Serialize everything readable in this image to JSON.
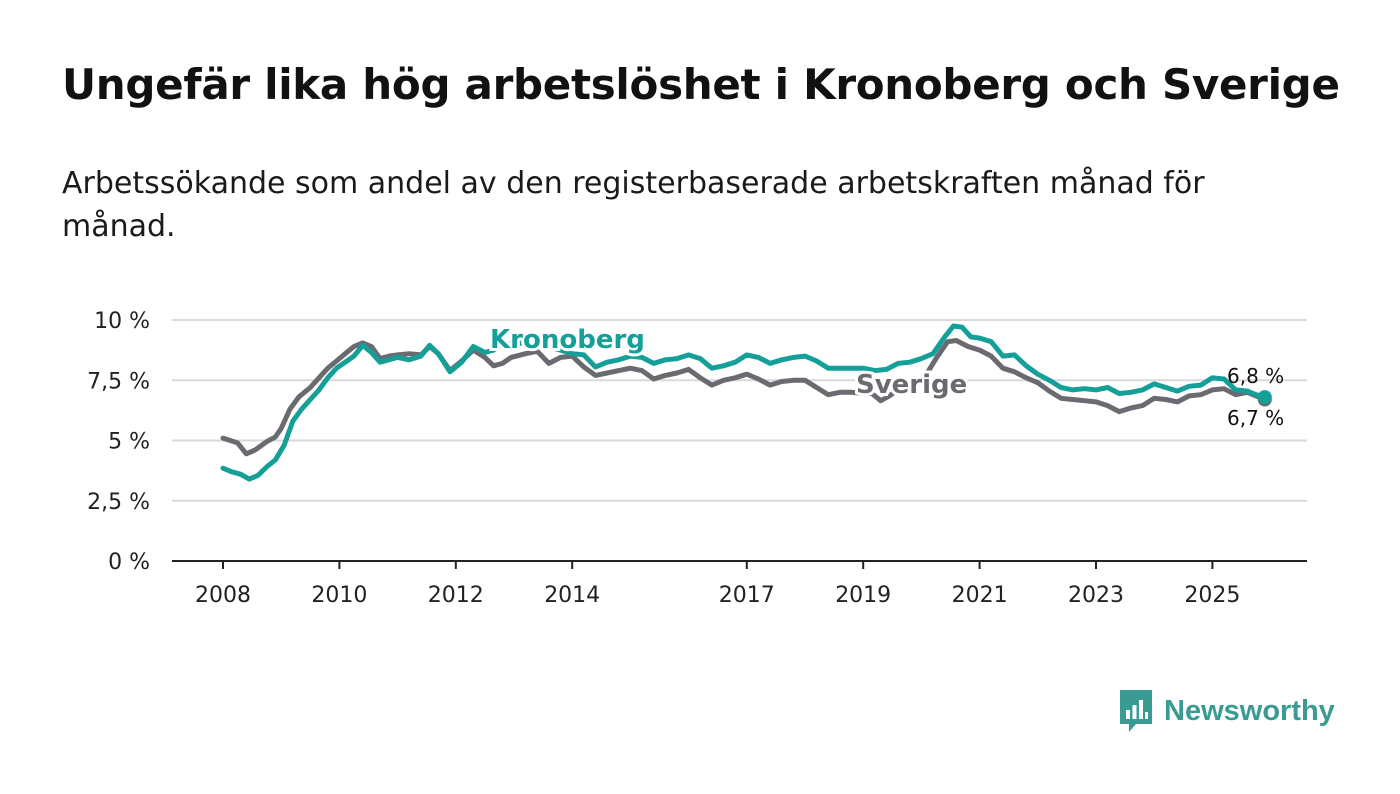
{
  "title": "Ungefär lika hög arbetslöshet i Kronoberg och Sverige",
  "subtitle": "Arbetssökande som andel av den registerbaserade arbetskraften månad för månad.",
  "brand": {
    "name": "Newsworthy",
    "logo_icon": "newsworthy-bar-chart-icon",
    "color": "#3a9b92"
  },
  "chart_data": {
    "type": "line",
    "title": "Ungefär lika hög arbetslöshet i Kronoberg och Sverige",
    "xlabel": "",
    "ylabel": "",
    "xlim": [
      2007.85,
      2026.5
    ],
    "ylim": [
      0,
      10
    ],
    "grid": true,
    "y_ticks": [
      {
        "value": 0,
        "label": "0 %"
      },
      {
        "value": 2.5,
        "label": "2,5 %"
      },
      {
        "value": 5,
        "label": "5 %"
      },
      {
        "value": 7.5,
        "label": "7,5 %"
      },
      {
        "value": 10,
        "label": "10 %"
      }
    ],
    "x_ticks": [
      {
        "value": 2008,
        "label": "2008"
      },
      {
        "value": 2010,
        "label": "2010"
      },
      {
        "value": 2012,
        "label": "2012"
      },
      {
        "value": 2014,
        "label": "2014"
      },
      {
        "value": 2017,
        "label": "2017"
      },
      {
        "value": 2019,
        "label": "2019"
      },
      {
        "value": 2021,
        "label": "2021"
      },
      {
        "value": 2023,
        "label": "2023"
      },
      {
        "value": 2025,
        "label": "2025"
      }
    ],
    "series": [
      {
        "name": "Sverige",
        "color": "#6b6a70",
        "label": "Sverige",
        "label_anchor": [
          2018.9,
          7.1
        ],
        "end_label": "6,7 %",
        "points": [
          [
            2008.0,
            5.1
          ],
          [
            2008.25,
            4.9
          ],
          [
            2008.4,
            4.45
          ],
          [
            2008.55,
            4.6
          ],
          [
            2008.75,
            4.95
          ],
          [
            2008.9,
            5.15
          ],
          [
            2009.0,
            5.5
          ],
          [
            2009.15,
            6.3
          ],
          [
            2009.3,
            6.8
          ],
          [
            2009.5,
            7.2
          ],
          [
            2009.65,
            7.6
          ],
          [
            2009.8,
            8.0
          ],
          [
            2009.95,
            8.3
          ],
          [
            2010.1,
            8.6
          ],
          [
            2010.25,
            8.9
          ],
          [
            2010.4,
            9.05
          ],
          [
            2010.55,
            8.9
          ],
          [
            2010.7,
            8.4
          ],
          [
            2010.85,
            8.5
          ],
          [
            2011.0,
            8.55
          ],
          [
            2011.2,
            8.6
          ],
          [
            2011.4,
            8.55
          ],
          [
            2011.55,
            8.9
          ],
          [
            2011.7,
            8.6
          ],
          [
            2011.9,
            7.9
          ],
          [
            2012.1,
            8.3
          ],
          [
            2012.3,
            8.75
          ],
          [
            2012.5,
            8.45
          ],
          [
            2012.65,
            8.1
          ],
          [
            2012.8,
            8.2
          ],
          [
            2012.95,
            8.45
          ],
          [
            2013.2,
            8.6
          ],
          [
            2013.4,
            8.7
          ],
          [
            2013.6,
            8.2
          ],
          [
            2013.8,
            8.45
          ],
          [
            2014.0,
            8.5
          ],
          [
            2014.2,
            8.05
          ],
          [
            2014.4,
            7.7
          ],
          [
            2014.6,
            7.8
          ],
          [
            2014.8,
            7.9
          ],
          [
            2015.0,
            8.0
          ],
          [
            2015.2,
            7.9
          ],
          [
            2015.4,
            7.55
          ],
          [
            2015.6,
            7.7
          ],
          [
            2015.8,
            7.8
          ],
          [
            2016.0,
            7.95
          ],
          [
            2016.2,
            7.6
          ],
          [
            2016.4,
            7.3
          ],
          [
            2016.6,
            7.5
          ],
          [
            2016.8,
            7.6
          ],
          [
            2017.0,
            7.75
          ],
          [
            2017.2,
            7.55
          ],
          [
            2017.4,
            7.3
          ],
          [
            2017.6,
            7.45
          ],
          [
            2017.8,
            7.5
          ],
          [
            2018.0,
            7.5
          ],
          [
            2018.2,
            7.2
          ],
          [
            2018.4,
            6.9
          ],
          [
            2018.6,
            7.0
          ],
          [
            2018.8,
            7.0
          ],
          [
            2019.0,
            6.95
          ],
          [
            2019.15,
            6.95
          ],
          [
            2019.3,
            6.65
          ],
          [
            2019.45,
            6.85
          ],
          [
            2019.65,
            7.2
          ],
          [
            2019.85,
            7.45
          ],
          [
            2020.05,
            7.6
          ],
          [
            2020.25,
            8.4
          ],
          [
            2020.45,
            9.1
          ],
          [
            2020.6,
            9.15
          ],
          [
            2020.8,
            8.9
          ],
          [
            2021.0,
            8.75
          ],
          [
            2021.2,
            8.5
          ],
          [
            2021.4,
            8.0
          ],
          [
            2021.6,
            7.85
          ],
          [
            2021.8,
            7.6
          ],
          [
            2022.0,
            7.4
          ],
          [
            2022.2,
            7.05
          ],
          [
            2022.4,
            6.75
          ],
          [
            2022.6,
            6.7
          ],
          [
            2022.8,
            6.65
          ],
          [
            2023.0,
            6.6
          ],
          [
            2023.2,
            6.45
          ],
          [
            2023.4,
            6.2
          ],
          [
            2023.6,
            6.35
          ],
          [
            2023.8,
            6.45
          ],
          [
            2024.0,
            6.75
          ],
          [
            2024.2,
            6.7
          ],
          [
            2024.4,
            6.6
          ],
          [
            2024.6,
            6.85
          ],
          [
            2024.8,
            6.9
          ],
          [
            2025.0,
            7.1
          ],
          [
            2025.2,
            7.15
          ],
          [
            2025.4,
            6.9
          ],
          [
            2025.6,
            7.0
          ],
          [
            2025.75,
            6.85
          ],
          [
            2025.9,
            6.7
          ]
        ]
      },
      {
        "name": "Kronoberg",
        "color": "#14a098",
        "label": "Kronoberg",
        "label_anchor": [
          2012.65,
          9.0
        ],
        "end_label": "6,8 %",
        "points": [
          [
            2008.0,
            3.85
          ],
          [
            2008.15,
            3.7
          ],
          [
            2008.3,
            3.6
          ],
          [
            2008.45,
            3.4
          ],
          [
            2008.6,
            3.55
          ],
          [
            2008.75,
            3.9
          ],
          [
            2008.9,
            4.2
          ],
          [
            2009.05,
            4.8
          ],
          [
            2009.2,
            5.8
          ],
          [
            2009.35,
            6.3
          ],
          [
            2009.5,
            6.7
          ],
          [
            2009.65,
            7.1
          ],
          [
            2009.8,
            7.6
          ],
          [
            2009.95,
            8.0
          ],
          [
            2010.1,
            8.25
          ],
          [
            2010.25,
            8.5
          ],
          [
            2010.4,
            8.95
          ],
          [
            2010.55,
            8.65
          ],
          [
            2010.7,
            8.25
          ],
          [
            2010.85,
            8.35
          ],
          [
            2011.0,
            8.45
          ],
          [
            2011.2,
            8.35
          ],
          [
            2011.4,
            8.5
          ],
          [
            2011.55,
            8.95
          ],
          [
            2011.7,
            8.6
          ],
          [
            2011.9,
            7.85
          ],
          [
            2012.1,
            8.25
          ],
          [
            2012.3,
            8.9
          ],
          [
            2012.5,
            8.65
          ],
          [
            2012.65,
            8.75
          ],
          [
            2012.8,
            9.0
          ],
          [
            2013.2,
            9.05
          ],
          [
            2013.5,
            8.95
          ],
          [
            2013.8,
            8.75
          ],
          [
            2014.0,
            8.6
          ],
          [
            2014.2,
            8.55
          ],
          [
            2014.4,
            8.05
          ],
          [
            2014.6,
            8.25
          ],
          [
            2014.8,
            8.35
          ],
          [
            2015.0,
            8.5
          ],
          [
            2015.2,
            8.45
          ],
          [
            2015.4,
            8.2
          ],
          [
            2015.6,
            8.35
          ],
          [
            2015.8,
            8.4
          ],
          [
            2016.0,
            8.55
          ],
          [
            2016.2,
            8.4
          ],
          [
            2016.4,
            8.0
          ],
          [
            2016.6,
            8.1
          ],
          [
            2016.8,
            8.25
          ],
          [
            2017.0,
            8.55
          ],
          [
            2017.2,
            8.45
          ],
          [
            2017.4,
            8.2
          ],
          [
            2017.6,
            8.35
          ],
          [
            2017.8,
            8.45
          ],
          [
            2018.0,
            8.5
          ],
          [
            2018.2,
            8.3
          ],
          [
            2018.4,
            8.0
          ],
          [
            2018.6,
            8.0
          ],
          [
            2018.8,
            8.0
          ],
          [
            2019.0,
            8.0
          ],
          [
            2019.2,
            7.9
          ],
          [
            2019.4,
            7.95
          ],
          [
            2019.6,
            8.2
          ],
          [
            2019.8,
            8.25
          ],
          [
            2020.0,
            8.4
          ],
          [
            2020.2,
            8.6
          ],
          [
            2020.4,
            9.3
          ],
          [
            2020.55,
            9.75
          ],
          [
            2020.7,
            9.7
          ],
          [
            2020.85,
            9.3
          ],
          [
            2021.0,
            9.25
          ],
          [
            2021.2,
            9.1
          ],
          [
            2021.4,
            8.5
          ],
          [
            2021.6,
            8.55
          ],
          [
            2021.8,
            8.1
          ],
          [
            2022.0,
            7.75
          ],
          [
            2022.2,
            7.5
          ],
          [
            2022.4,
            7.2
          ],
          [
            2022.6,
            7.1
          ],
          [
            2022.8,
            7.15
          ],
          [
            2023.0,
            7.1
          ],
          [
            2023.2,
            7.2
          ],
          [
            2023.4,
            6.95
          ],
          [
            2023.6,
            7.0
          ],
          [
            2023.8,
            7.1
          ],
          [
            2024.0,
            7.35
          ],
          [
            2024.2,
            7.2
          ],
          [
            2024.4,
            7.05
          ],
          [
            2024.6,
            7.25
          ],
          [
            2024.8,
            7.3
          ],
          [
            2025.0,
            7.6
          ],
          [
            2025.2,
            7.55
          ],
          [
            2025.4,
            7.1
          ],
          [
            2025.6,
            7.05
          ],
          [
            2025.75,
            6.9
          ],
          [
            2025.9,
            6.8
          ]
        ]
      }
    ]
  }
}
